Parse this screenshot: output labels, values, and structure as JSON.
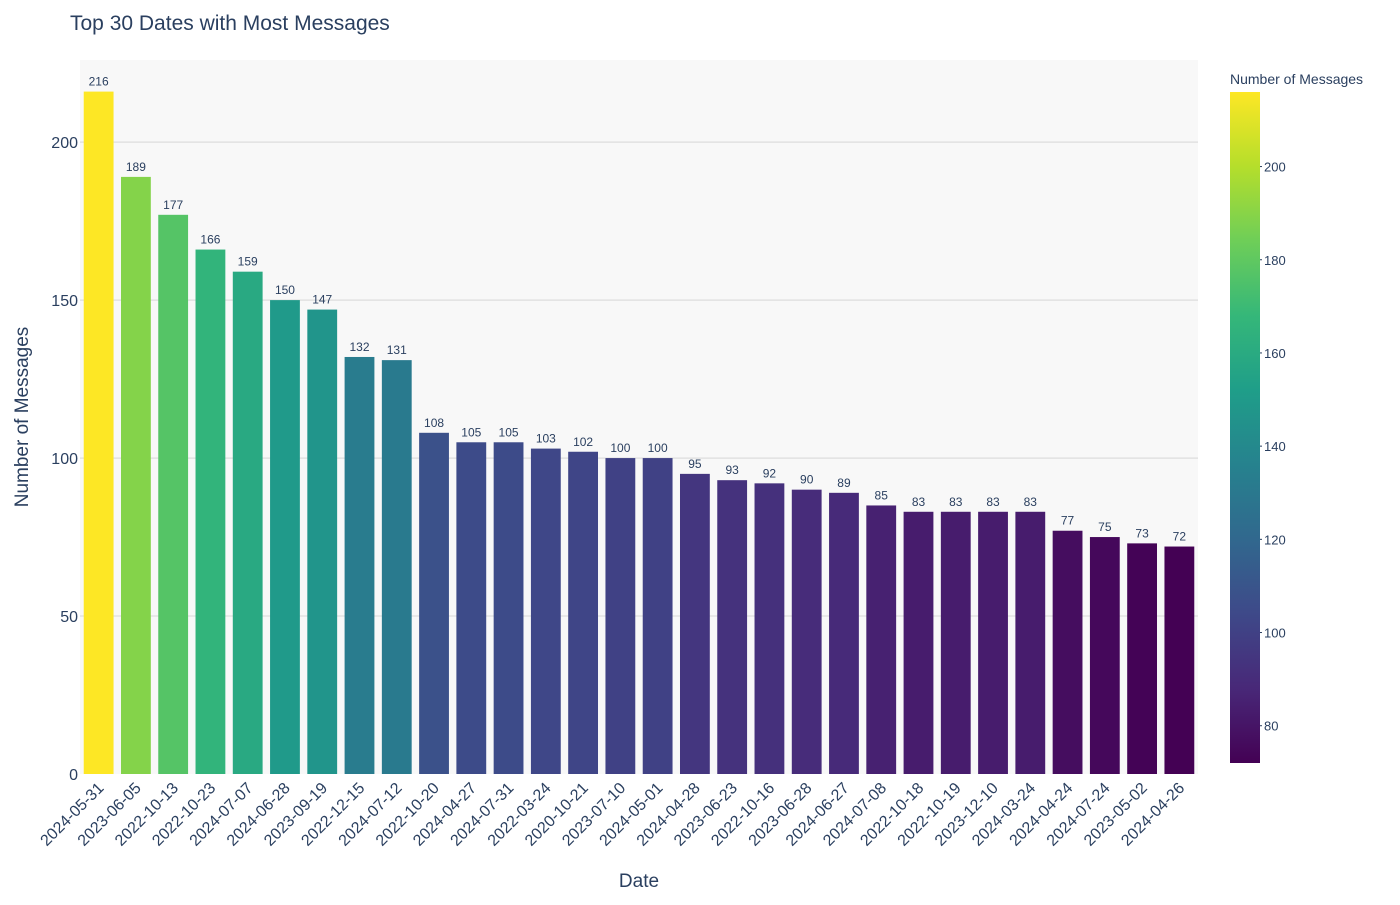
{
  "chart_data": {
    "type": "bar",
    "title": "Top 30 Dates with Most Messages",
    "xlabel": "Date",
    "ylabel": "Number of Messages",
    "ylim": [
      0,
      226
    ],
    "yticks": [
      0,
      50,
      100,
      150,
      200
    ],
    "grid": true,
    "categories": [
      "2024-05-31",
      "2023-06-05",
      "2022-10-13",
      "2022-10-23",
      "2024-07-07",
      "2024-06-28",
      "2023-09-19",
      "2022-12-15",
      "2024-07-12",
      "2022-10-20",
      "2024-04-27",
      "2024-07-31",
      "2022-03-24",
      "2020-10-21",
      "2023-07-10",
      "2024-05-01",
      "2024-04-28",
      "2023-06-23",
      "2022-10-16",
      "2023-06-28",
      "2024-06-27",
      "2024-07-08",
      "2022-10-18",
      "2022-10-19",
      "2023-12-10",
      "2024-03-24",
      "2024-04-24",
      "2024-07-24",
      "2023-05-02",
      "2024-04-26"
    ],
    "values": [
      216,
      189,
      177,
      166,
      159,
      150,
      147,
      132,
      131,
      108,
      105,
      105,
      103,
      102,
      100,
      100,
      95,
      93,
      92,
      90,
      89,
      85,
      83,
      83,
      83,
      83,
      77,
      75,
      73,
      72
    ],
    "colorbar": {
      "title": "Number of Messages",
      "colorscale": "Viridis",
      "range": [
        72,
        216
      ],
      "ticks": [
        80,
        100,
        120,
        140,
        160,
        180,
        200
      ]
    }
  }
}
